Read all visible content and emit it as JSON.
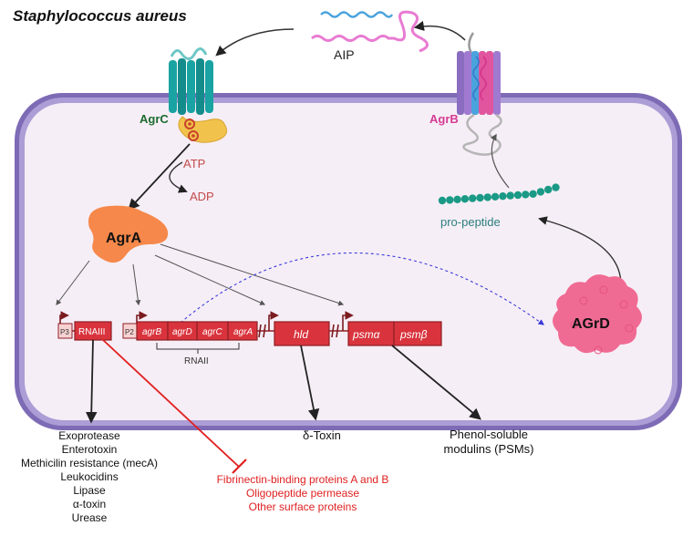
{
  "title": "Staphylococcus aureus",
  "proteins": {
    "agrc": "AgrC",
    "agrb": "AgrB",
    "agra": "AgrA",
    "agrd": "AGrD",
    "aip": "AIP",
    "pro_peptide": "pro-peptide",
    "atp": "ATP",
    "adp": "ADP"
  },
  "promoters": {
    "p3": "P3",
    "p2": "P2"
  },
  "genes": {
    "rnaiii": "RNAIII",
    "agrB": "agrB",
    "agrD": "agrD",
    "agrC": "agrC",
    "agrA": "agrA",
    "rnaii": "RNAII",
    "hld": "hld",
    "psma": "psmα",
    "psmb": "psmβ"
  },
  "products": {
    "delta_toxin": "δ-Toxin",
    "psm_line1": "Phenol-soluble",
    "psm_line2": "modulins (PSMs)"
  },
  "upregulated": [
    "Exoprotease",
    "Enterotoxin",
    "Methicilin resistance (mecA)",
    "Leukocidins",
    "Lipase",
    "α-toxin",
    "Urease"
  ],
  "repressed": [
    "Fibrinectin-binding proteins A and B",
    "Oligopeptide permease",
    "Other surface proteins"
  ],
  "colors": {
    "membrane_outer": "#7e6bb5",
    "membrane_inner": "#ad9dd6",
    "cytoplasm": "#f6eef6",
    "gene_fill": "#d9343d",
    "gene_dark": "#8f1e24",
    "agrc_teal": "#1aa3a3",
    "agra_orange": "#f5884a",
    "agrd_pink": "#f06b93",
    "agrb_pink": "#e0559e",
    "aip_blue": "#4aa3dd",
    "aip_pink": "#e87bd2",
    "propeptide_teal": "#1a9a86",
    "text_green": "#1c6b2f",
    "text_magenta": "#d63b93",
    "text_red": "#e02121",
    "text_teal": "#2a7f7f",
    "atp_red": "#c24b4b"
  }
}
